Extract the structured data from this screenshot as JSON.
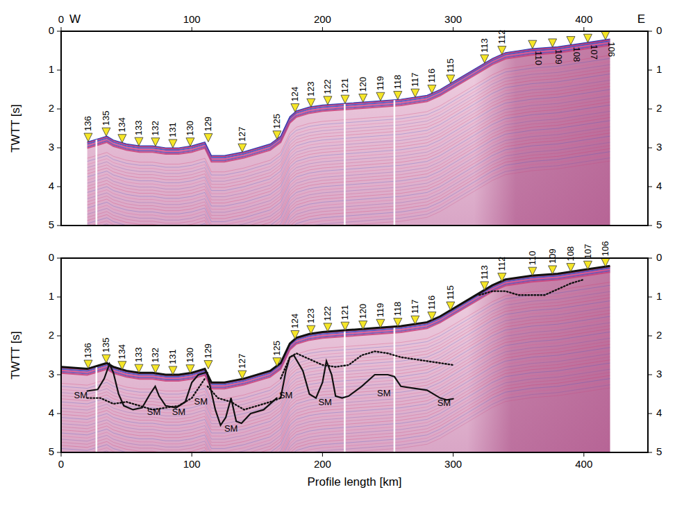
{
  "chart_data": [
    {
      "type": "line",
      "y_label": "TWTT [s]",
      "direction_labels": [
        "W",
        "E"
      ],
      "xlim": [
        0,
        449
      ],
      "ylim": [
        5,
        0
      ],
      "xticks": [
        0,
        100,
        200,
        300,
        400
      ],
      "yticks": [
        0,
        1,
        2,
        3,
        4,
        5
      ],
      "seafloor": {
        "x": [
          20,
          30,
          35,
          40,
          50,
          60,
          70,
          80,
          90,
          100,
          105,
          110,
          115,
          125,
          140,
          160,
          168,
          175,
          180,
          190,
          200,
          220,
          240,
          260,
          280,
          290,
          300,
          320,
          330,
          340,
          350,
          360,
          380,
          400,
          420
        ],
        "values": [
          2.85,
          2.75,
          2.7,
          2.8,
          2.9,
          2.95,
          2.95,
          3.0,
          3.0,
          2.95,
          2.9,
          2.85,
          3.2,
          3.2,
          3.1,
          2.9,
          2.7,
          2.2,
          2.05,
          1.95,
          1.9,
          1.85,
          1.8,
          1.75,
          1.65,
          1.5,
          1.3,
          0.9,
          0.7,
          0.55,
          0.5,
          0.45,
          0.4,
          0.3,
          0.2
        ]
      },
      "gaps_x": [
        27,
        217,
        255
      ],
      "stations": {
        "labels": [
          "136",
          "135",
          "134",
          "133",
          "132",
          "131",
          "130",
          "129",
          "127",
          "125",
          "124",
          "123",
          "122",
          "121",
          "120",
          "119",
          "118",
          "117",
          "116",
          "115",
          "113",
          "112",
          "110",
          "109",
          "108",
          "107",
          "106"
        ],
        "x": [
          20.7,
          34.5,
          46.7,
          59.5,
          72.2,
          85.5,
          98.8,
          112.6,
          138.6,
          165.2,
          179,
          191.2,
          204,
          217.3,
          231,
          244.4,
          257.6,
          270.9,
          283.7,
          298,
          324,
          337.3,
          360.7,
          376,
          390,
          403,
          416.5
        ],
        "values": [
          2.84,
          2.7,
          2.87,
          2.95,
          2.96,
          3.0,
          2.96,
          2.85,
          3.11,
          2.78,
          2.08,
          1.95,
          1.89,
          1.86,
          1.83,
          1.79,
          1.76,
          1.7,
          1.6,
          1.34,
          0.82,
          0.6,
          0.45,
          0.41,
          0.35,
          0.29,
          0.22
        ],
        "color": "#f5e628"
      }
    },
    {
      "type": "line",
      "y_label": "TWTT [s]",
      "x_label": "Profile length [km]",
      "xlim": [
        0,
        449
      ],
      "ylim": [
        5,
        0
      ],
      "xticks": [
        0,
        100,
        200,
        300,
        400
      ],
      "yticks": [
        0,
        1,
        2,
        3,
        4,
        5
      ],
      "seafloor": {
        "x": [
          0,
          20,
          30,
          35,
          40,
          50,
          60,
          70,
          80,
          90,
          100,
          105,
          110,
          115,
          125,
          140,
          160,
          168,
          175,
          180,
          190,
          200,
          220,
          240,
          260,
          280,
          290,
          300,
          320,
          330,
          340,
          350,
          360,
          380,
          400,
          420
        ],
        "values": [
          2.8,
          2.85,
          2.75,
          2.7,
          2.8,
          2.9,
          2.95,
          2.95,
          3.0,
          3.0,
          2.95,
          2.9,
          2.85,
          3.2,
          3.2,
          3.1,
          2.9,
          2.7,
          2.2,
          2.05,
          1.95,
          1.9,
          1.85,
          1.8,
          1.75,
          1.65,
          1.5,
          1.3,
          0.9,
          0.7,
          0.55,
          0.5,
          0.45,
          0.4,
          0.3,
          0.2
        ],
        "color": "#111111",
        "line_style": "solid"
      },
      "gaps_x": [
        27,
        217,
        255
      ],
      "series": [
        {
          "x": [
            20,
            28,
            33,
            37,
            40,
            44,
            48,
            55,
            62,
            68,
            72,
            75,
            80,
            88,
            95,
            100,
            105,
            110,
            112
          ],
          "values": [
            3.42,
            3.38,
            3.1,
            2.72,
            2.95,
            3.5,
            3.8,
            3.9,
            3.85,
            3.5,
            3.3,
            3.55,
            3.8,
            3.85,
            3.7,
            3.2,
            3.0,
            2.95,
            2.95
          ],
          "color": "#111111",
          "line_style": "solid"
        },
        {
          "x": [
            112,
            118,
            122,
            126,
            130,
            134,
            138,
            145,
            155,
            165
          ],
          "values": [
            3.0,
            3.9,
            4.3,
            4.1,
            3.6,
            4.2,
            4.25,
            4.0,
            3.9,
            3.6
          ],
          "color": "#111111",
          "line_style": "solid"
        },
        {
          "x": [
            168,
            172,
            175,
            178,
            185,
            190,
            195,
            200,
            203,
            207,
            210,
            215,
            220,
            230,
            240,
            250,
            255,
            260,
            270,
            280,
            290,
            295,
            300
          ],
          "values": [
            3.6,
            2.9,
            2.55,
            2.5,
            2.9,
            3.5,
            3.6,
            3.2,
            2.65,
            3.0,
            3.55,
            3.6,
            3.55,
            3.3,
            3.0,
            3.0,
            3.05,
            3.3,
            3.35,
            3.4,
            3.6,
            3.65,
            3.62
          ],
          "color": "#111111",
          "line_style": "solid"
        },
        {
          "x": [
            168,
            175,
            180,
            190,
            200,
            210,
            220,
            230,
            240,
            250,
            260,
            270,
            280,
            290,
            300
          ],
          "values": [
            3.1,
            2.55,
            2.45,
            2.6,
            2.75,
            2.8,
            2.75,
            2.5,
            2.4,
            2.45,
            2.55,
            2.6,
            2.65,
            2.7,
            2.75
          ],
          "color": "#111111",
          "line_style": "dotted"
        },
        {
          "x": [
            20,
            30,
            40,
            50,
            60,
            70,
            80,
            90,
            100,
            110
          ],
          "values": [
            3.6,
            3.6,
            3.75,
            3.7,
            3.8,
            3.9,
            3.85,
            3.8,
            3.6,
            3.1
          ],
          "color": "#111111",
          "line_style": "dotted"
        },
        {
          "x": [
            112,
            120,
            130,
            140,
            150,
            160,
            168
          ],
          "values": [
            3.3,
            3.6,
            3.7,
            3.9,
            3.8,
            3.7,
            3.6
          ],
          "color": "#111111",
          "line_style": "dotted"
        },
        {
          "x": [
            320,
            330,
            340,
            350,
            360,
            370,
            380,
            390,
            400
          ],
          "values": [
            0.95,
            0.85,
            0.85,
            0.95,
            0.95,
            0.95,
            0.8,
            0.65,
            0.55
          ],
          "color": "#111111",
          "line_style": "dotted"
        }
      ],
      "annotations": [
        {
          "text": "SM",
          "x": 15,
          "y": 3.55
        },
        {
          "text": "SM",
          "x": 71,
          "y": 3.98
        },
        {
          "text": "SM",
          "x": 90,
          "y": 3.98
        },
        {
          "text": "SM",
          "x": 107,
          "y": 3.7
        },
        {
          "text": "SM",
          "x": 130,
          "y": 4.4
        },
        {
          "text": "SM",
          "x": 172,
          "y": 3.55
        },
        {
          "text": "SM",
          "x": 202,
          "y": 3.72
        },
        {
          "text": "SM",
          "x": 247,
          "y": 3.5
        },
        {
          "text": "SM",
          "x": 293,
          "y": 3.75
        }
      ],
      "stations": {
        "labels": [
          "136",
          "135",
          "134",
          "133",
          "132",
          "131",
          "130",
          "129",
          "127",
          "125",
          "124",
          "123",
          "122",
          "121",
          "120",
          "119",
          "118",
          "117",
          "116",
          "115",
          "113",
          "112",
          "110",
          "109",
          "108",
          "107",
          "106"
        ],
        "x": [
          20.7,
          34.5,
          46.7,
          59.5,
          72.2,
          85.5,
          98.8,
          112.6,
          138.6,
          165.2,
          179,
          191.2,
          204,
          217.3,
          231,
          244.4,
          257.6,
          270.9,
          283.7,
          298,
          324,
          337.3,
          360.7,
          376,
          390,
          403,
          416.5
        ],
        "values": [
          2.84,
          2.7,
          2.87,
          2.95,
          2.96,
          3.0,
          2.96,
          2.85,
          3.11,
          2.78,
          2.08,
          1.95,
          1.89,
          1.86,
          1.83,
          1.79,
          1.76,
          1.7,
          1.6,
          1.34,
          0.82,
          0.6,
          0.45,
          0.41,
          0.35,
          0.29,
          0.22
        ],
        "color": "#f5e628"
      }
    }
  ]
}
